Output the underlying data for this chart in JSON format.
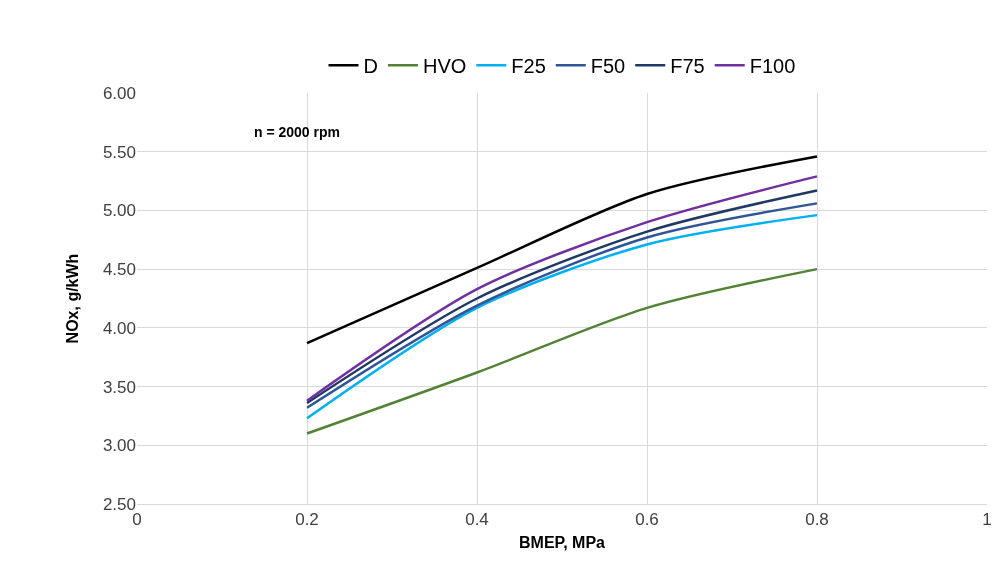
{
  "chart_data": {
    "type": "line",
    "xlabel": "BMEP, MPa",
    "ylabel": "NOx, g/kWh",
    "annotations": [
      "n = 2000 rpm"
    ],
    "x": [
      0.2,
      0.4,
      0.6,
      0.8
    ],
    "series": [
      {
        "name": "D",
        "color": "#000000",
        "values": [
          3.87,
          4.51,
          5.14,
          5.46
        ]
      },
      {
        "name": "HVO",
        "color": "#548235",
        "values": [
          3.1,
          3.62,
          4.17,
          4.5
        ]
      },
      {
        "name": "F25",
        "color": "#00b0f0",
        "values": [
          3.23,
          4.17,
          4.71,
          4.96
        ]
      },
      {
        "name": "F50",
        "color": "#2f5597",
        "values": [
          3.32,
          4.19,
          4.77,
          5.06
        ]
      },
      {
        "name": "F75",
        "color": "#203864",
        "values": [
          3.36,
          4.25,
          4.82,
          5.17
        ]
      },
      {
        "name": "F100",
        "color": "#7030a0",
        "values": [
          3.38,
          4.33,
          4.9,
          5.29
        ]
      }
    ],
    "xlim": [
      0,
      1
    ],
    "xticks": [
      0,
      0.2,
      0.4,
      0.6,
      0.8,
      1
    ],
    "ylim": [
      2.5,
      6
    ],
    "yticks": [
      {
        "value": 2.5,
        "label": "2.50"
      },
      {
        "value": 3,
        "label": "3.00"
      },
      {
        "value": 3.5,
        "label": "3.50"
      },
      {
        "value": 4,
        "label": "4.00"
      },
      {
        "value": 4.5,
        "label": "4.50"
      },
      {
        "value": 5,
        "label": "5.00"
      },
      {
        "value": 5.5,
        "label": "5.50"
      },
      {
        "value": 6,
        "label": "6.00"
      }
    ],
    "grid": true,
    "legend": "top",
    "marker": "none",
    "line_style": "solid"
  }
}
